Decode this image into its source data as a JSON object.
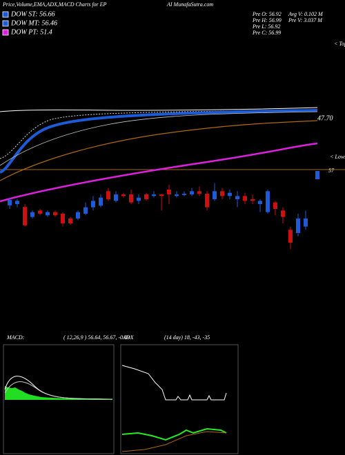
{
  "header": {
    "title": "Price,Volume,EMA,ADX,MACD Charts for EP",
    "site": "AI MunafaSutra.com"
  },
  "legend": [
    {
      "label": "DOW ST: 56.66",
      "color": "#1e5bd6"
    },
    {
      "label": "DOW MT: 56.46",
      "color": "#1e5bd6"
    },
    {
      "label": "DOW PT: 51.4",
      "color": "#e020e0"
    }
  ],
  "stats": {
    "pre": [
      "Pre  O: 56.92",
      "Pre  H: 56.99",
      "Pre  L: 56.92",
      "Pre  C: 56.99"
    ],
    "volume": [
      "Avg  V: 0.102  M",
      "Pre  V: 3.037  M"
    ]
  },
  "price_labels": {
    "tops": "< Tops",
    "level": "47.70",
    "lows": "< Lows",
    "last": "57"
  },
  "chart_data": {
    "type": "candlestick",
    "ylim": [
      54.5,
      57.5
    ],
    "up_color": "#1e5bd6",
    "down_color": "#cc1111",
    "open": [
      56.26,
      56.3,
      56.21,
      55.9,
      56.1,
      55.95,
      56.05,
      56.0,
      55.85,
      55.85,
      56.0,
      56.2,
      56.25,
      56.7,
      56.4,
      56.6,
      56.6,
      56.4,
      56.6,
      56.55,
      56.6,
      56.75,
      56.55,
      56.58,
      56.6,
      56.7,
      56.62,
      56.45,
      56.7,
      56.55,
      56.45,
      56.55,
      56.45,
      56.3,
      56.05,
      56.35,
      56.1,
      55.5,
      55.4,
      55.6
    ],
    "high": [
      56.5,
      56.45,
      56.3,
      56.1,
      56.15,
      56.1,
      56.1,
      56.05,
      55.9,
      56.1,
      56.35,
      56.55,
      56.6,
      56.8,
      56.7,
      56.65,
      56.75,
      56.6,
      56.65,
      56.7,
      56.62,
      56.9,
      56.7,
      56.7,
      56.8,
      56.85,
      56.7,
      56.95,
      56.8,
      56.75,
      56.7,
      56.65,
      56.6,
      56.45,
      56.75,
      56.4,
      56.2,
      55.6,
      56.0,
      56.1
    ],
    "low": [
      56.15,
      56.2,
      55.6,
      55.85,
      55.95,
      55.9,
      55.9,
      55.6,
      55.65,
      55.8,
      55.95,
      56.1,
      56.2,
      56.4,
      56.35,
      56.5,
      56.3,
      56.3,
      56.4,
      56.5,
      56.1,
      56.3,
      56.5,
      56.55,
      56.55,
      56.55,
      56.1,
      56.4,
      56.45,
      56.45,
      56.2,
      56.3,
      56.3,
      56.05,
      56.0,
      55.95,
      55.7,
      54.9,
      55.3,
      55.5
    ],
    "close": [
      56.43,
      56.4,
      55.64,
      56.05,
      56.0,
      56.05,
      55.95,
      55.7,
      55.7,
      56.05,
      56.2,
      56.4,
      56.5,
      56.45,
      56.6,
      56.55,
      56.35,
      56.5,
      56.45,
      56.6,
      56.55,
      56.6,
      56.6,
      56.62,
      56.7,
      56.62,
      56.2,
      56.7,
      56.55,
      56.65,
      56.55,
      56.4,
      56.4,
      56.4,
      56.7,
      56.15,
      55.9,
      55.1,
      55.85,
      55.85
    ]
  },
  "macd": {
    "label": "MACD:",
    "values": "( 12,26,9 ) 56.64, 56.67, -0.03"
  },
  "adx": {
    "label": "ADX",
    "values": "(14 day) 18, -43, -35"
  }
}
